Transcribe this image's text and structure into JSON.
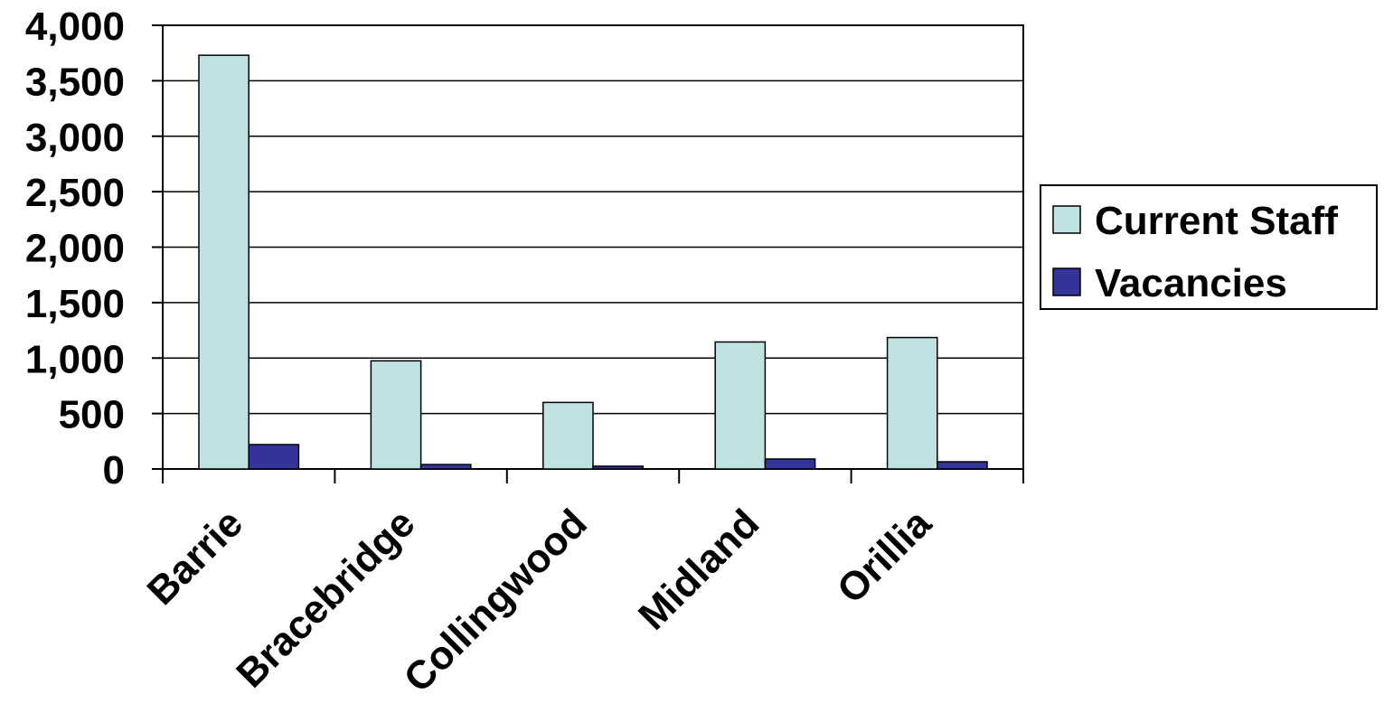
{
  "chart_data": {
    "type": "bar",
    "categories": [
      "Barrie",
      "Bracebridge",
      "Collingwood",
      "Midland",
      "Orillia"
    ],
    "series": [
      {
        "name": "Current Staff",
        "values": [
          3730,
          975,
          600,
          1145,
          1185
        ],
        "color": "#bfe3e3"
      },
      {
        "name": "Vacancies",
        "values": [
          220,
          40,
          25,
          90,
          65
        ],
        "color": "#333399"
      }
    ],
    "ylim": [
      0,
      4000
    ],
    "yticks": [
      "0",
      "500",
      "1,000",
      "1,500",
      "2,000",
      "2,500",
      "3,000",
      "3,500",
      "4,000"
    ],
    "grid": true,
    "legend_position": "right"
  }
}
